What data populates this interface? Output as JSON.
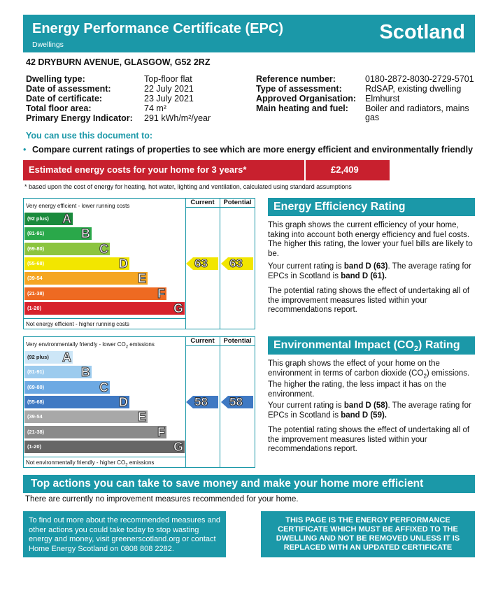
{
  "header": {
    "title": "Energy Performance Certificate (EPC)",
    "subtitle": "Dwellings",
    "region": "Scotland"
  },
  "address": "42 DRYBURN AVENUE, GLASGOW, G52 2RZ",
  "details_left": [
    {
      "label": "Dwelling type:",
      "value": "Top-floor flat"
    },
    {
      "label": "Date of assessment:",
      "value": "22 July 2021"
    },
    {
      "label": "Date of certificate:",
      "value": "23 July 2021"
    },
    {
      "label": "Total floor area:",
      "value": "74 m²"
    },
    {
      "label": "Primary Energy Indicator:",
      "value": "291 kWh/m²/year"
    }
  ],
  "details_right": [
    {
      "label": "Reference number:",
      "value": "0180-2872-8030-2729-5701"
    },
    {
      "label": "Type of assessment:",
      "value": "RdSAP, existing dwelling"
    },
    {
      "label": "Approved Organisation:",
      "value": "Elmhurst"
    },
    {
      "label": "Main heating and fuel:",
      "value": "Boiler and radiators, mains",
      "value2": "gas"
    }
  ],
  "use_document": {
    "heading": "You can use this document to:",
    "bullet": "•",
    "item": "Compare current ratings of properties to see which are more energy efficient and environmentally friendly"
  },
  "cost": {
    "label": "Estimated energy costs for your home for 3 years*",
    "value": "£2,409",
    "footnote": "* based upon the cost of energy for heating, hot water, lighting and ventilation, calculated using standard assumptions"
  },
  "energy_graph": {
    "top_text": "Very energy efficient - lower running costs",
    "bottom_text": "Not energy efficient - higher running costs",
    "col_current": "Current",
    "col_potential": "Potential",
    "bands": [
      {
        "range": "(92 plus)",
        "letter": "A",
        "color": "#1a8a3c"
      },
      {
        "range": "(81-91)",
        "letter": "B",
        "color": "#2aa84a"
      },
      {
        "range": "(69-80)",
        "letter": "C",
        "color": "#8cc43f"
      },
      {
        "range": "(55-68)",
        "letter": "D",
        "color": "#f2e600"
      },
      {
        "range": "(39-54",
        "letter": "E",
        "color": "#f5a623"
      },
      {
        "range": "(21-38)",
        "letter": "F",
        "color": "#ee6a22"
      },
      {
        "range": "(1-20)",
        "letter": "G",
        "color": "#d7222c"
      }
    ],
    "current": "63",
    "potential": "63",
    "current_band_index": 3,
    "arrow_color": "#f2e600"
  },
  "energy_panel": {
    "title": "Energy Efficiency Rating",
    "para1": "This graph shows the current efficiency of your home, taking into account both energy efficiency and fuel costs. The higher this rating, the lower your fuel bills are likely to be.",
    "para2_pre": "Your current rating is ",
    "para2_b1": "band D (63)",
    "para2_mid": ". The average rating for EPCs in Scotland is ",
    "para2_b2": "band D (61).",
    "para3": "The potential rating shows the effect of undertaking all of the improvement measures listed within your recommendations report."
  },
  "env_graph": {
    "top_text": "Very environmentally friendly - lower CO",
    "top_sub": "2",
    "top_end": " emissions",
    "bottom_text": "Not environmentally friendly - higher CO",
    "bottom_sub": "2",
    "bottom_end": " emissions",
    "col_current": "Current",
    "col_potential": "Potential",
    "bands": [
      {
        "range": "(92 plus)",
        "letter": "A",
        "color": "#cde6f7"
      },
      {
        "range": "(81-91)",
        "letter": "B",
        "color": "#9ccbee"
      },
      {
        "range": "(69-80)",
        "letter": "C",
        "color": "#6da9e3"
      },
      {
        "range": "(55-68)",
        "letter": "D",
        "color": "#3f79c3"
      },
      {
        "range": "(39-54",
        "letter": "E",
        "color": "#a8a8a8"
      },
      {
        "range": "(21-38)",
        "letter": "F",
        "color": "#8a8a8a"
      },
      {
        "range": "(1-20)",
        "letter": "G",
        "color": "#666666"
      }
    ],
    "current": "58",
    "potential": "58",
    "current_band_index": 3,
    "arrow_color": "#3f79c3"
  },
  "env_panel": {
    "title_pre": "Environmental Impact (CO",
    "title_sub": "2",
    "title_end": ") Rating",
    "para1_a": "This graph shows the effect of your home on the environment in terms of carbon dioxide (CO",
    "para1_sub": "2",
    "para1_b": ") emissions. The higher the rating, the less impact it has on the environment.",
    "para2_pre": "Your current rating is ",
    "para2_b1": "band D (58)",
    "para2_mid": ". The average rating for EPCs in Scotland is ",
    "para2_b2": "band D (59).",
    "para3": "The potential rating shows the effect of undertaking all of the improvement measures listed within your recommendations report."
  },
  "actions": {
    "title": "Top actions you can take to save money and make your home more efficient",
    "text": "There are currently no improvement measures recommended for your home."
  },
  "info_box": "To find out more about the recommended measures and other actions you could take today to stop wasting energy and money, visit greenerscotland.org or contact Home Energy Scotland on 0808 808 2282.",
  "warning_box": "THIS PAGE IS THE ENERGY PERFORMANCE CERTIFICATE WHICH MUST BE AFFIXED TO THE DWELLING AND NOT BE REMOVED UNLESS IT IS REPLACED WITH AN UPDATED CERTIFICATE"
}
